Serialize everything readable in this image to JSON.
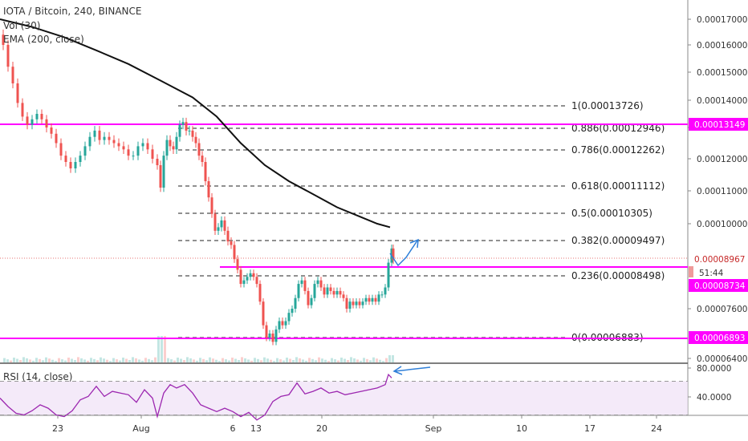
{
  "header": {
    "symbol_line": "IOTA / Bitcoin, 240, BINANCE",
    "volume_label": "Vol (30)",
    "ema_label": "EMA (200, close)",
    "rsi_label": "RSI (14, close)"
  },
  "colors": {
    "up": "#26a69a",
    "down": "#ef5350",
    "ema": "#111111",
    "level_line": "#ff00ff",
    "rsi_line": "#9c27b0",
    "rsi_band": "#f0e1f7",
    "arrow": "#2f7fd8"
  },
  "chart_data": {
    "type": "candlestick",
    "price_axis": {
      "ticks": [
        "0.00017000",
        "0.00016000",
        "0.00015000",
        "0.00014000",
        "0.00013000",
        "0.00012000",
        "0.00011000",
        "0.00010000",
        "0.00007600",
        "0.00006400"
      ],
      "labels": {
        "last_price": "0.00008967",
        "countdown": "51:44",
        "support": "0.00008734",
        "upper_level": "0.00013149",
        "lower_level": "0.00006893"
      }
    },
    "rsi_axis": {
      "ticks": [
        "80.0000",
        "40.0000"
      ]
    },
    "time_axis": {
      "ticks": [
        "23",
        "Aug",
        "6",
        "13",
        "20",
        "Sep",
        "10",
        "17",
        "24"
      ]
    },
    "fib_levels": [
      {
        "ratio": "1",
        "label": "1(0.00013726)"
      },
      {
        "ratio": "0.886",
        "label": "0.886(0.00012946)"
      },
      {
        "ratio": "0.786",
        "label": "0.786(0.00012262)"
      },
      {
        "ratio": "0.618",
        "label": "0.618(0.00011112)"
      },
      {
        "ratio": "0.5",
        "label": "0.5(0.00010305)"
      },
      {
        "ratio": "0.382",
        "label": "0.382(0.00009497)"
      },
      {
        "ratio": "0.236",
        "label": "0.236(0.00008498)"
      },
      {
        "ratio": "0",
        "label": "0(0.00006883)"
      }
    ],
    "horizontal_levels": [
      0.00013149,
      8.734e-05,
      6.893e-05
    ],
    "close_path": [
      [
        0,
        0.000164
      ],
      [
        4,
        0.00016
      ],
      [
        10,
        0.000152
      ],
      [
        16,
        0.000146
      ],
      [
        22,
        0.000139
      ],
      [
        28,
        0.000134
      ],
      [
        34,
        0.000131
      ],
      [
        40,
        0.000133
      ],
      [
        46,
        0.000135
      ],
      [
        52,
        0.000133
      ],
      [
        58,
        0.00013
      ],
      [
        64,
        0.000128
      ],
      [
        70,
        0.000125
      ],
      [
        76,
        0.000121
      ],
      [
        82,
        0.000119
      ],
      [
        88,
        0.000117
      ],
      [
        94,
        0.000119
      ],
      [
        100,
        0.000121
      ],
      [
        106,
        0.000124
      ],
      [
        112,
        0.000127
      ],
      [
        118,
        0.000129
      ],
      [
        124,
        0.000126
      ],
      [
        130,
        0.000127
      ],
      [
        136,
        0.000126
      ],
      [
        142,
        0.000125
      ],
      [
        148,
        0.000124
      ],
      [
        154,
        0.000123
      ],
      [
        160,
        0.000121
      ],
      [
        166,
        0.000121
      ],
      [
        172,
        0.000124
      ],
      [
        178,
        0.000125
      ],
      [
        184,
        0.000123
      ],
      [
        190,
        0.00012
      ],
      [
        196,
        0.000118
      ],
      [
        200,
        0.000111
      ],
      [
        204,
        0.000121
      ],
      [
        208,
        0.000126
      ],
      [
        212,
        0.000124
      ],
      [
        216,
        0.000123
      ],
      [
        220,
        0.000127
      ],
      [
        224,
        0.000131
      ],
      [
        228,
        0.000132
      ],
      [
        232,
        0.000129
      ],
      [
        236,
        0.000129
      ],
      [
        240,
        0.000127
      ],
      [
        244,
        0.000125
      ],
      [
        248,
        0.000121
      ],
      [
        252,
        0.000119
      ],
      [
        256,
        0.000113
      ],
      [
        260,
        0.000108
      ],
      [
        264,
        0.000103
      ],
      [
        268,
        9.8e-05
      ],
      [
        272,
        9.9e-05
      ],
      [
        276,
        0.000101
      ],
      [
        280,
        9.8e-05
      ],
      [
        284,
        9.5e-05
      ],
      [
        288,
        9.4e-05
      ],
      [
        292,
        9e-05
      ],
      [
        296,
        8.7e-05
      ],
      [
        300,
        8.3e-05
      ],
      [
        304,
        8.4e-05
      ],
      [
        308,
        8.5e-05
      ],
      [
        312,
        8.6e-05
      ],
      [
        316,
        8.5e-05
      ],
      [
        320,
        8.3e-05
      ],
      [
        324,
        7.8e-05
      ],
      [
        328,
        7.2e-05
      ],
      [
        332,
        6.9e-05
      ],
      [
        336,
        7e-05
      ],
      [
        340,
        6.8e-05
      ],
      [
        344,
        7.1e-05
      ],
      [
        348,
        7.3e-05
      ],
      [
        352,
        7.2e-05
      ],
      [
        356,
        7.3e-05
      ],
      [
        360,
        7.5e-05
      ],
      [
        364,
        7.6e-05
      ],
      [
        368,
        7.9e-05
      ],
      [
        372,
        8.3e-05
      ],
      [
        376,
        8.4e-05
      ],
      [
        380,
        8.1e-05
      ],
      [
        384,
        7.7e-05
      ],
      [
        388,
        7.9e-05
      ],
      [
        392,
        8.3e-05
      ],
      [
        396,
        8.4e-05
      ],
      [
        400,
        8.2e-05
      ],
      [
        404,
        8e-05
      ],
      [
        408,
        8.2e-05
      ],
      [
        412,
        8.1e-05
      ],
      [
        416,
        8e-05
      ],
      [
        420,
        8.1e-05
      ],
      [
        424,
        8e-05
      ],
      [
        428,
        7.9e-05
      ],
      [
        432,
        7.6e-05
      ],
      [
        436,
        7.8e-05
      ],
      [
        440,
        7.7e-05
      ],
      [
        444,
        7.8e-05
      ],
      [
        448,
        7.7e-05
      ],
      [
        452,
        7.8e-05
      ],
      [
        456,
        7.9e-05
      ],
      [
        460,
        7.8e-05
      ],
      [
        464,
        7.9e-05
      ],
      [
        468,
        7.8e-05
      ],
      [
        472,
        8e-05
      ],
      [
        476,
        8e-05
      ],
      [
        480,
        8.2e-05
      ],
      [
        484,
        8.9e-05
      ],
      [
        488,
        9.3e-05
      ],
      [
        490,
        8.97e-05
      ]
    ],
    "ema_path": [
      [
        0,
        0.00017
      ],
      [
        40,
        0.000167
      ],
      [
        80,
        0.000163
      ],
      [
        120,
        0.000158
      ],
      [
        160,
        0.000153
      ],
      [
        200,
        0.000147
      ],
      [
        240,
        0.000141
      ],
      [
        270,
        0.000134
      ],
      [
        300,
        0.000125
      ],
      [
        330,
        0.000118
      ],
      [
        360,
        0.000113
      ],
      [
        390,
        0.000109
      ],
      [
        420,
        0.000105
      ],
      [
        450,
        0.000102
      ],
      [
        470,
        0.0001
      ],
      [
        486,
        9.9e-05
      ]
    ],
    "rsi_path": [
      [
        0,
        50
      ],
      [
        10,
        40
      ],
      [
        20,
        32
      ],
      [
        30,
        30
      ],
      [
        40,
        35
      ],
      [
        50,
        42
      ],
      [
        60,
        38
      ],
      [
        70,
        30
      ],
      [
        80,
        28
      ],
      [
        90,
        35
      ],
      [
        100,
        48
      ],
      [
        110,
        52
      ],
      [
        120,
        64
      ],
      [
        130,
        52
      ],
      [
        140,
        58
      ],
      [
        150,
        56
      ],
      [
        160,
        54
      ],
      [
        170,
        45
      ],
      [
        180,
        60
      ],
      [
        190,
        50
      ],
      [
        196,
        28
      ],
      [
        204,
        56
      ],
      [
        212,
        66
      ],
      [
        220,
        62
      ],
      [
        230,
        66
      ],
      [
        240,
        56
      ],
      [
        250,
        42
      ],
      [
        260,
        38
      ],
      [
        270,
        34
      ],
      [
        280,
        38
      ],
      [
        290,
        34
      ],
      [
        300,
        28
      ],
      [
        310,
        33
      ],
      [
        320,
        24
      ],
      [
        330,
        30
      ],
      [
        340,
        46
      ],
      [
        350,
        52
      ],
      [
        360,
        54
      ],
      [
        370,
        68
      ],
      [
        380,
        55
      ],
      [
        390,
        58
      ],
      [
        400,
        62
      ],
      [
        410,
        56
      ],
      [
        420,
        58
      ],
      [
        430,
        54
      ],
      [
        440,
        56
      ],
      [
        450,
        58
      ],
      [
        460,
        60
      ],
      [
        470,
        62
      ],
      [
        480,
        66
      ],
      [
        484,
        78
      ],
      [
        488,
        74
      ]
    ]
  }
}
